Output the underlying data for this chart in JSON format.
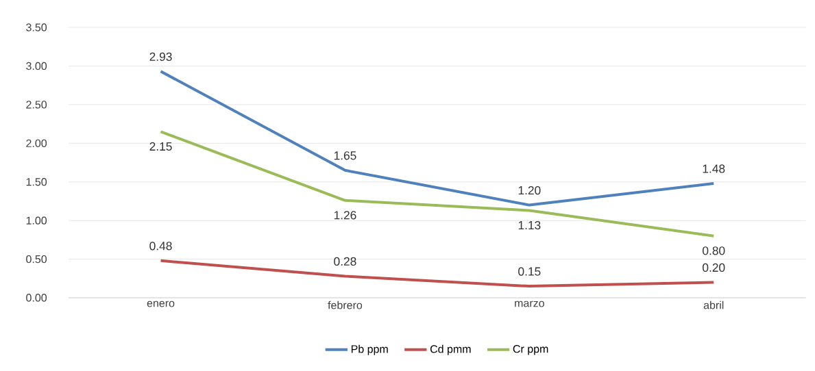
{
  "chart_data": {
    "type": "line",
    "categories": [
      "enero",
      "febrero",
      "marzo",
      "abril"
    ],
    "series": [
      {
        "name": "Pb ppm",
        "color": "#4f81bd",
        "values": [
          2.93,
          1.65,
          1.2,
          1.48
        ],
        "value_labels": [
          "2.93",
          "1.65",
          "1.20",
          "1.48"
        ]
      },
      {
        "name": "Cd pmm",
        "color": "#c0504d",
        "values": [
          0.48,
          0.28,
          0.15,
          0.2
        ],
        "value_labels": [
          "0.48",
          "0.28",
          "0.15",
          "0.20"
        ]
      },
      {
        "name": "Cr ppm",
        "color": "#9bbb59",
        "values": [
          2.15,
          1.26,
          1.13,
          0.8
        ],
        "value_labels": [
          "2.15",
          "1.26",
          "1.13",
          "0.80"
        ]
      }
    ],
    "ylim": [
      0,
      3.5
    ],
    "yticks": [
      {
        "value": 0,
        "label": "0.00"
      },
      {
        "value": 0.5,
        "label": "0.50"
      },
      {
        "value": 1,
        "label": "1.00"
      },
      {
        "value": 1.5,
        "label": "1.50"
      },
      {
        "value": 2,
        "label": "2.00"
      },
      {
        "value": 2.5,
        "label": "2.50"
      },
      {
        "value": 3,
        "label": "3.00"
      },
      {
        "value": 3.5,
        "label": "3.50"
      }
    ],
    "grid": "y",
    "legend": "bottom",
    "marker": "none",
    "line_style": "solid"
  }
}
